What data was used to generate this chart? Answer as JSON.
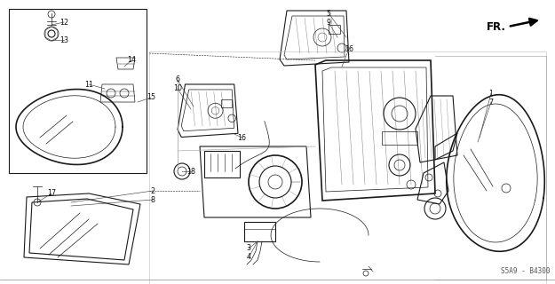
{
  "bg_color": "#ffffff",
  "line_color": "#1a1a1a",
  "label_color": "#111111",
  "diagram_label": "S5A9 - B4300",
  "fr_label": "FR.",
  "figsize": [
    6.25,
    3.2
  ],
  "dpi": 100
}
